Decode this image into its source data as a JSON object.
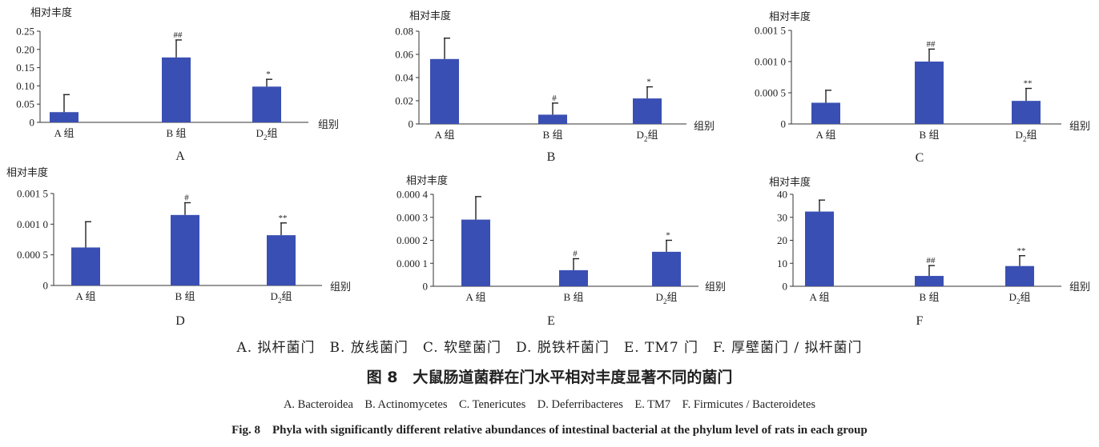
{
  "common": {
    "ylabel": "相对丰度",
    "xlabel": "组别",
    "categories": [
      "A组",
      "B组",
      "D2组"
    ],
    "bar_color": "#3a4fb3"
  },
  "chart_data": [
    {
      "type": "bar",
      "panel": "A",
      "categories": [
        "A组",
        "B组",
        "D2组"
      ],
      "series": [
        {
          "values": [
            0.028,
            0.178,
            0.098
          ],
          "errors": [
            0.048,
            0.048,
            0.02
          ]
        }
      ],
      "annotations": [
        "",
        "##",
        "*"
      ],
      "ylabel": "相对丰度",
      "xlabel": "组别",
      "ylim": [
        0,
        0.25
      ],
      "yticks": [
        "0",
        "0.05",
        "0.10",
        "0.15",
        "0.20",
        "0.25"
      ]
    },
    {
      "type": "bar",
      "panel": "B",
      "categories": [
        "A组",
        "B组",
        "D2组"
      ],
      "series": [
        {
          "values": [
            0.056,
            0.008,
            0.022
          ],
          "errors": [
            0.018,
            0.01,
            0.01
          ]
        }
      ],
      "annotations": [
        "",
        "#",
        "*"
      ],
      "ylabel": "相对丰度",
      "xlabel": "组别",
      "ylim": [
        0,
        0.08
      ],
      "yticks": [
        "0",
        "0.02",
        "0.04",
        "0.06",
        "0.08"
      ]
    },
    {
      "type": "bar",
      "panel": "C",
      "categories": [
        "A组",
        "B组",
        "D2组"
      ],
      "series": [
        {
          "values": [
            0.00034,
            0.001,
            0.00037
          ],
          "errors": [
            0.0002,
            0.0002,
            0.0002
          ]
        }
      ],
      "annotations": [
        "",
        "##",
        "**"
      ],
      "ylabel": "相对丰度",
      "xlabel": "组别",
      "ylim": [
        0,
        0.0015
      ],
      "yticks": [
        "0",
        "0.000 5",
        "0.001 0",
        "0.001 5"
      ]
    },
    {
      "type": "bar",
      "panel": "D",
      "categories": [
        "A组",
        "B组",
        "D2组"
      ],
      "series": [
        {
          "values": [
            0.00062,
            0.00115,
            0.00082
          ],
          "errors": [
            0.00042,
            0.0002,
            0.0002
          ]
        }
      ],
      "annotations": [
        "",
        "#",
        "**"
      ],
      "ylabel": "相对丰度",
      "xlabel": "组别",
      "ylim": [
        0,
        0.0015
      ],
      "yticks": [
        "0",
        "0.000 5",
        "0.001 0",
        "0.001 5"
      ]
    },
    {
      "type": "bar",
      "panel": "E",
      "categories": [
        "A组",
        "B组",
        "D2组"
      ],
      "series": [
        {
          "values": [
            0.00029,
            7e-05,
            0.00015
          ],
          "errors": [
            0.0001,
            5e-05,
            5e-05
          ]
        }
      ],
      "annotations": [
        "",
        "#",
        "*"
      ],
      "ylabel": "相对丰度",
      "xlabel": "组别",
      "ylim": [
        0,
        0.0004
      ],
      "yticks": [
        "0",
        "0.000 1",
        "0.000 2",
        "0.000 3",
        "0.000 4"
      ]
    },
    {
      "type": "bar",
      "panel": "F",
      "categories": [
        "A组",
        "B组",
        "D2组"
      ],
      "series": [
        {
          "values": [
            32.5,
            4.5,
            8.8
          ],
          "errors": [
            5.0,
            4.5,
            4.5
          ]
        }
      ],
      "annotations": [
        "",
        "##",
        "**"
      ],
      "ylabel": "相对丰度",
      "xlabel": "组别",
      "ylim": [
        0,
        40
      ],
      "yticks": [
        "0",
        "10",
        "20",
        "30",
        "40"
      ]
    }
  ],
  "captions": {
    "panel_names": "A. 拟杆菌门　B. 放线菌门　C. 软壁菌门　D. 脱铁杆菌门　E. TM7 门　F. 厚壁菌门 / 拟杆菌门",
    "figure_title_cn": "图 8　大鼠肠道菌群在门水平相对丰度显著不同的菌门",
    "panel_names_en": "A. Bacteroidea　B. Actinomycetes　C. Tenericutes　D. Deferribacteres　E. TM7　F. Firmicutes / Bacteroidetes",
    "figure_title_en": "Fig. 8　Phyla with significantly different relative abundances of intestinal bacterial at the phylum level of rats in each group"
  }
}
